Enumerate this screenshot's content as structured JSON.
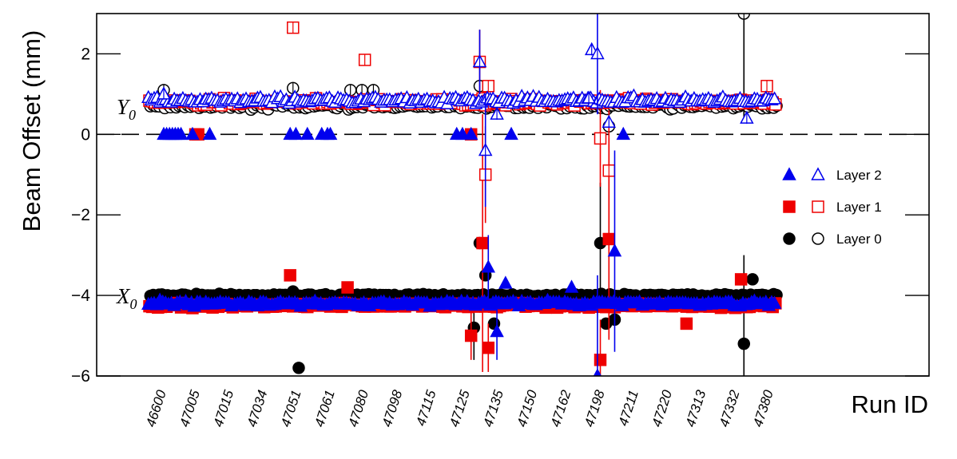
{
  "chart_data": {
    "type": "scatter",
    "xlabel": "Run ID",
    "ylabel": "Beam Offset (mm)",
    "ylim": [
      -6,
      3
    ],
    "yticks": [
      -6,
      -4,
      -2,
      0,
      2
    ],
    "ytick_labels": [
      "−6",
      "−4",
      "−2",
      "0",
      "2"
    ],
    "xlim": [
      0,
      250
    ],
    "x_tick_labels": [
      "46600",
      "47005",
      "47015",
      "47034",
      "47051",
      "47061",
      "47080",
      "47098",
      "47115",
      "47125",
      "47135",
      "47150",
      "47162",
      "47198",
      "47211",
      "47220",
      "47313",
      "47332",
      "47380"
    ],
    "reference_line": {
      "y": 0,
      "style": "dashed"
    },
    "annotations": [
      {
        "text": "Y",
        "sub": "0",
        "y": 0.7
      },
      {
        "text": "X",
        "sub": "0",
        "y": -4.0
      }
    ],
    "legend": {
      "position": "right",
      "entries": [
        {
          "label": "Layer 2",
          "color": "#0000ee",
          "marker": "triangle"
        },
        {
          "label": "Layer 1",
          "color": "#ee0000",
          "marker": "square"
        },
        {
          "label": "Layer 0",
          "color": "#000000",
          "marker": "circle"
        }
      ]
    },
    "series": [
      {
        "name": "Layer 2",
        "color": "#0000ee",
        "marker": "triangle",
        "x0_base": -4.2,
        "x0_jitter": 0.09,
        "y0_base": 0.85,
        "y0_jitter": 0.12,
        "x0_points": [
          [
            118,
            -3.3,
            0.8
          ],
          [
            121,
            -4.9,
            0.7
          ],
          [
            156,
            -6.0,
            2.5
          ],
          [
            162,
            -2.9,
            2.5
          ],
          [
            124,
            -3.7,
            0
          ],
          [
            147,
            -3.8,
            0
          ]
        ],
        "y0_points": [
          [
            115,
            1.8,
            0.8
          ],
          [
            117,
            -0.4,
            1.4
          ],
          [
            121,
            0.5,
            0
          ],
          [
            154,
            2.1,
            0
          ],
          [
            156,
            2.0,
            1.5
          ],
          [
            160,
            0.3,
            0
          ],
          [
            153,
            0.9,
            0
          ],
          [
            208,
            0.4,
            0
          ],
          [
            5,
            1.0,
            0
          ]
        ],
        "zero_points": [
          5,
          6,
          7,
          8,
          9,
          10,
          11,
          15,
          21,
          49,
          51,
          55,
          60,
          62,
          63,
          107,
          109,
          112,
          126,
          165
        ]
      },
      {
        "name": "Layer 1",
        "color": "#ee0000",
        "marker": "square",
        "x0_base": -4.25,
        "x0_jitter": 0.08,
        "y0_base": 0.8,
        "y0_jitter": 0.12,
        "x0_points": [
          [
            112,
            -5.0,
            0.6
          ],
          [
            116,
            -2.7,
            3.2
          ],
          [
            118,
            -5.3,
            0.6
          ],
          [
            157,
            -5.6,
            1.0
          ],
          [
            160,
            -2.6,
            2.5
          ],
          [
            49,
            -3.5,
            0
          ],
          [
            69,
            -3.8,
            0
          ],
          [
            187,
            -4.7,
            0
          ],
          [
            206,
            -3.6,
            0
          ],
          [
            3,
            -4.3,
            0
          ]
        ],
        "y0_points": [
          [
            50,
            2.65,
            0
          ],
          [
            75,
            1.85,
            0
          ],
          [
            115,
            1.8,
            0.8
          ],
          [
            117,
            -1.0,
            1.2
          ],
          [
            118,
            1.2,
            0
          ],
          [
            121,
            0.8,
            0
          ],
          [
            157,
            -0.1,
            1.2
          ],
          [
            160,
            -0.9,
            1.5
          ],
          [
            215,
            1.2,
            0
          ]
        ],
        "zero_points": [
          16,
          17,
          112
        ]
      },
      {
        "name": "Layer 0",
        "color": "#000000",
        "marker": "circle",
        "x0_base": -4.0,
        "x0_jitter": 0.05,
        "y0_base": 0.7,
        "y0_jitter": 0.1,
        "x0_points": [
          [
            113,
            -4.8,
            0.8
          ],
          [
            115,
            -2.7,
            0
          ],
          [
            117,
            -3.5,
            0
          ],
          [
            120,
            -4.7,
            0
          ],
          [
            157,
            -2.7,
            1.5
          ],
          [
            159,
            -4.7,
            0
          ],
          [
            162,
            -4.6,
            0
          ],
          [
            52,
            -5.8,
            0
          ],
          [
            207,
            -5.2,
            2.2
          ],
          [
            210,
            -3.6,
            0
          ],
          [
            50,
            -3.9,
            0
          ]
        ],
        "y0_points": [
          [
            50,
            1.15,
            0
          ],
          [
            5,
            1.1,
            0
          ],
          [
            207,
            3.0,
            2.6
          ],
          [
            160,
            0.2,
            0
          ],
          [
            115,
            1.2,
            0
          ],
          [
            70,
            1.1,
            0
          ],
          [
            74,
            1.1,
            0
          ],
          [
            78,
            1.1,
            0
          ]
        ],
        "zero_points": []
      }
    ]
  }
}
